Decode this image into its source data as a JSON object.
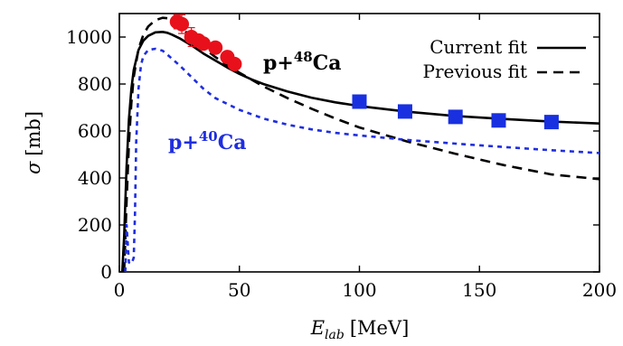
{
  "chart_data": {
    "type": "line",
    "xlabel_main": "E",
    "xlabel_sub": "lab",
    "xlabel_unit": "[MeV]",
    "ylabel_symbol": "σ",
    "ylabel_unit": "[mb]",
    "xlim": [
      0,
      200
    ],
    "ylim": [
      0,
      1100
    ],
    "xticks": [
      0,
      50,
      100,
      150,
      200
    ],
    "yticks": [
      0,
      200,
      400,
      600,
      800,
      1000
    ],
    "grid": false,
    "legend_position": "top-right",
    "colors": {
      "black": "#000000",
      "blue": "#1f2ee0",
      "red": "#e8101a",
      "square_blue": "#1830e0"
    },
    "legend": [
      {
        "label": "Current fit",
        "style": "solid"
      },
      {
        "label": "Previous fit",
        "style": "dashed"
      }
    ],
    "annotations": [
      {
        "prefix": "p+",
        "mass": "48",
        "element": "Ca",
        "color": "#000000"
      },
      {
        "prefix": "p+",
        "mass": "40",
        "element": "Ca",
        "color": "#1f2ee0"
      }
    ],
    "series": [
      {
        "name": "Current fit",
        "style": "solid",
        "color": "#000000",
        "x": [
          1.2,
          2,
          3,
          4,
          5,
          6,
          8,
          10,
          12,
          15,
          18,
          20,
          22,
          25,
          30,
          35,
          40,
          45,
          50,
          55,
          60,
          70,
          80,
          90,
          100,
          120,
          140,
          160,
          180,
          200
        ],
        "y": [
          0,
          150,
          450,
          650,
          780,
          860,
          945,
          985,
          1005,
          1020,
          1022,
          1018,
          1010,
          995,
          965,
          930,
          900,
          870,
          843,
          820,
          800,
          768,
          742,
          722,
          706,
          682,
          664,
          651,
          640,
          632
        ]
      },
      {
        "name": "Previous fit",
        "style": "dashed",
        "color": "#000000",
        "x": [
          2,
          3,
          4,
          5,
          6,
          8,
          10,
          12,
          15,
          18,
          20,
          22,
          25,
          30,
          35,
          40,
          45,
          50,
          60,
          70,
          80,
          90,
          100,
          120,
          140,
          160,
          180,
          200
        ],
        "y": [
          0,
          300,
          550,
          720,
          830,
          950,
          1010,
          1045,
          1072,
          1082,
          1080,
          1070,
          1048,
          1000,
          955,
          915,
          880,
          848,
          790,
          740,
          695,
          653,
          615,
          555,
          503,
          455,
          415,
          395
        ]
      },
      {
        "name": "",
        "style": "dotted",
        "color": "#1f2ee0",
        "x": [
          2.5,
          3,
          4,
          5,
          6,
          6.5,
          7,
          8,
          9,
          10,
          12,
          15,
          18,
          20,
          25,
          30,
          35,
          40,
          50,
          60,
          70,
          80,
          90,
          100,
          120,
          140,
          160,
          180,
          200
        ],
        "y": [
          0,
          200,
          40,
          35,
          60,
          250,
          550,
          780,
          880,
          920,
          945,
          950,
          942,
          925,
          880,
          830,
          780,
          740,
          690,
          653,
          627,
          607,
          592,
          581,
          562,
          546,
          532,
          518,
          506
        ]
      }
    ],
    "data_points": [
      {
        "name": "",
        "marker": "circle",
        "color": "#e8101a",
        "x": [
          24,
          26,
          30,
          33,
          35,
          40,
          45,
          48
        ],
        "y": [
          1065,
          1055,
          1000,
          985,
          972,
          955,
          915,
          885
        ],
        "err": [
          30,
          40,
          40,
          25,
          20,
          20,
          20,
          15
        ]
      },
      {
        "name": "",
        "marker": "square",
        "color": "#1830e0",
        "x": [
          100,
          119,
          140,
          158,
          180
        ],
        "y": [
          725,
          683,
          660,
          645,
          638
        ],
        "err": [
          0,
          0,
          0,
          0,
          0
        ]
      }
    ]
  }
}
